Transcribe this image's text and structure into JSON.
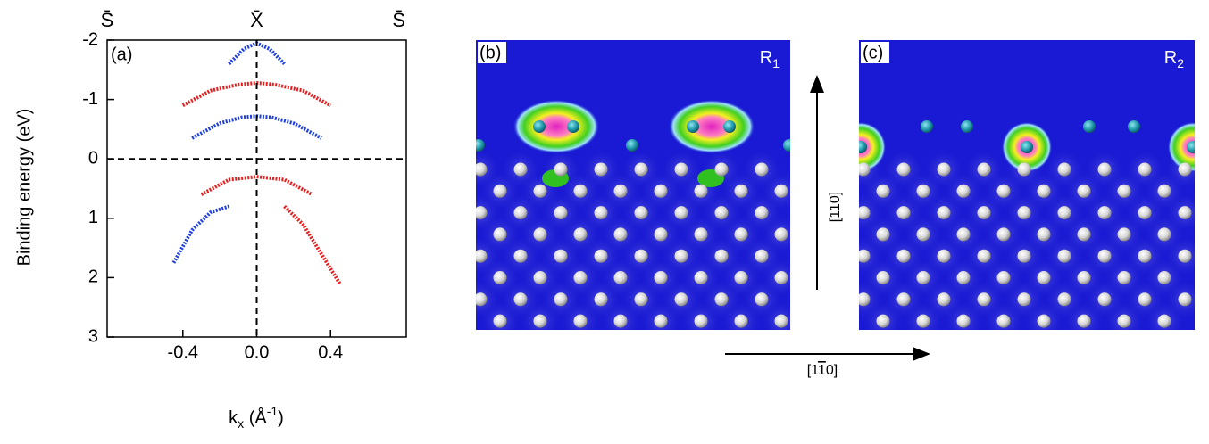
{
  "chart_data": {
    "type": "band-structure",
    "y_label": "Binding energy (eV)",
    "x_label_parts": [
      "k",
      "x",
      " (Å",
      "-1",
      ")"
    ],
    "panel_label": "(a)",
    "kpoints": [
      {
        "value": -0.81,
        "label": "S̄"
      },
      {
        "value": 0,
        "label": "X̄"
      },
      {
        "value": 0.77,
        "label": "S̄"
      }
    ],
    "xlim": [
      -0.81,
      0.81
    ],
    "ylim": [
      3,
      -2
    ],
    "xticks": [
      -0.4,
      {
        "value": 0,
        "label": "0.0"
      },
      0.4
    ],
    "yticks": [
      -2,
      -1,
      0,
      1,
      2,
      3
    ],
    "ref_x": 0,
    "ref_y": 0,
    "series": [
      {
        "color": "#1f3fe0",
        "x": [
          -0.15,
          -0.07,
          0,
          0.07,
          0.15
        ],
        "values": [
          -1.6,
          -1.85,
          -1.95,
          -1.85,
          -1.6
        ]
      },
      {
        "color": "#e81e1e",
        "x": [
          -0.4,
          -0.25,
          -0.1,
          0,
          0.1,
          0.25,
          0.4
        ],
        "values": [
          -0.9,
          -1.15,
          -1.25,
          -1.28,
          -1.25,
          -1.15,
          -0.9
        ]
      },
      {
        "color": "#1f3fe0",
        "x": [
          -0.35,
          -0.2,
          -0.08,
          0,
          0.08,
          0.2,
          0.35
        ],
        "values": [
          -0.35,
          -0.6,
          -0.7,
          -0.72,
          -0.7,
          -0.6,
          -0.35
        ]
      },
      {
        "color": "#e81e1e",
        "x": [
          -0.3,
          -0.15,
          0,
          0.15,
          0.3
        ],
        "values": [
          0.6,
          0.35,
          0.3,
          0.35,
          0.6
        ]
      },
      {
        "color": "#1f3fe0",
        "x": [
          -0.45,
          -0.35,
          -0.25,
          -0.15
        ],
        "values": [
          1.75,
          1.2,
          0.9,
          0.8
        ]
      },
      {
        "color": "#e81e1e",
        "x": [
          0.15,
          0.25,
          0.35,
          0.45
        ],
        "values": [
          0.8,
          1.1,
          1.6,
          2.1
        ]
      }
    ]
  },
  "panels": [
    {
      "label": "(b)",
      "region": [
        "R",
        "1"
      ]
    },
    {
      "label": "(c)",
      "region": [
        "R",
        "2"
      ]
    }
  ],
  "directions": {
    "vertical": "[110]",
    "horizontal": [
      "[1",
      "1",
      "0]"
    ]
  }
}
